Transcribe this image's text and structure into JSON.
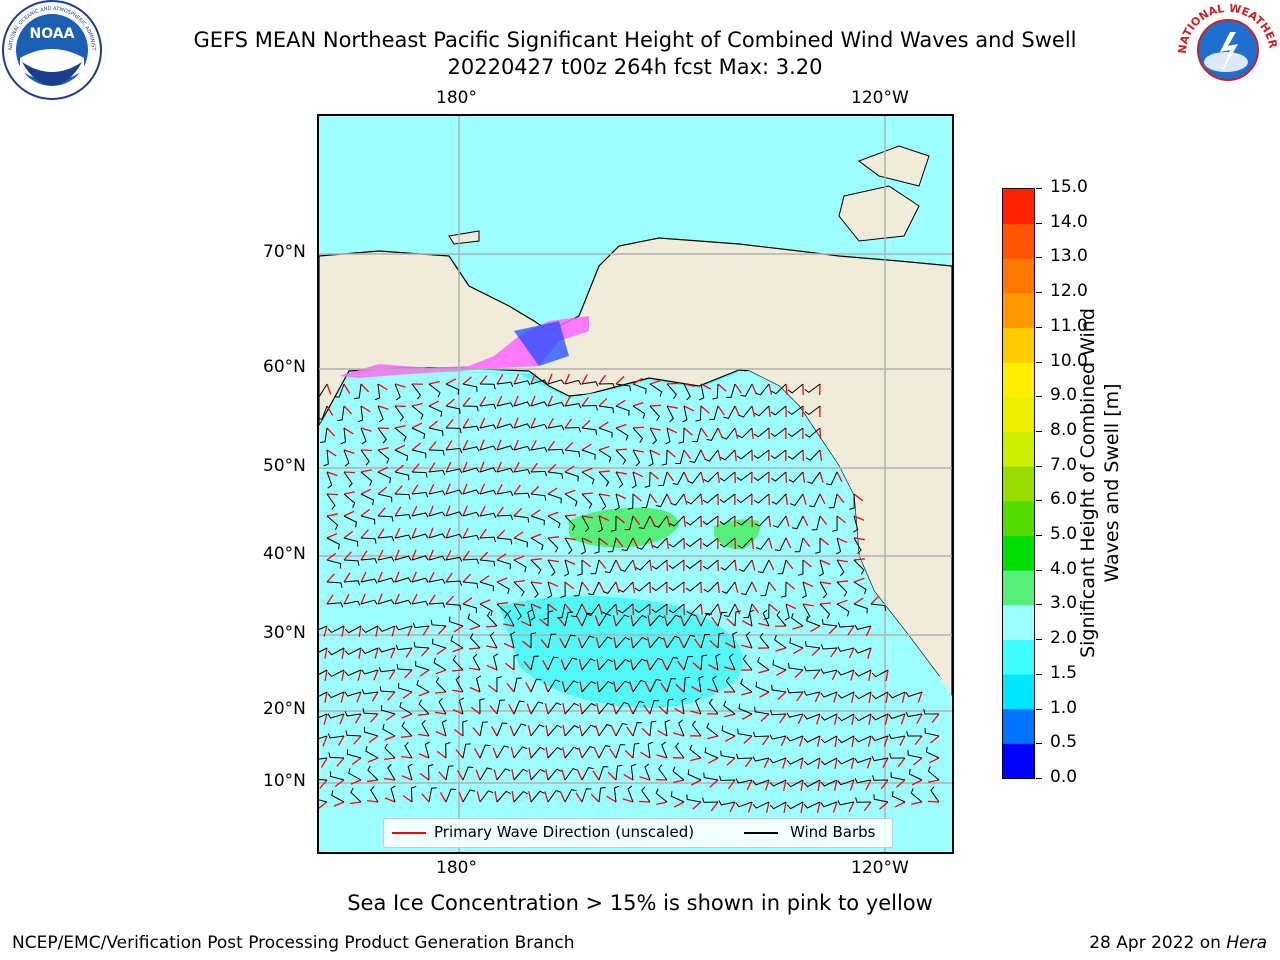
{
  "header": {
    "title_line1": "GEFS MEAN Northeast Pacific Significant Height of Combined Wind Waves and Swell",
    "title_line2": "20220427 t00z 264h fcst   Max: 3.20"
  },
  "logos": {
    "left": "NOAA",
    "left_ring_text": "NATIONAL OCEANIC AND ATMOSPHERIC ADMINISTRATION · U.S. DEPARTMENT OF COMMERCE",
    "right_ring_text": "NATIONAL WEATHER SERVICE"
  },
  "axes": {
    "lon_top": [
      "180°",
      "120°W"
    ],
    "lon_bottom": [
      "180°",
      "120°W"
    ],
    "lat_left": [
      "70°N",
      "60°N",
      "50°N",
      "40°N",
      "30°N",
      "20°N",
      "10°N"
    ]
  },
  "legend": {
    "wave_direction": "Primary Wave Direction (unscaled)",
    "wind_barbs": "Wind Barbs"
  },
  "colorbar": {
    "label": "Significant Height of Combined Wind Waves and Swell [m]",
    "ticks": [
      "0.0",
      "0.5",
      "1.0",
      "1.5",
      "2.0",
      "3.0",
      "4.0",
      "5.0",
      "6.0",
      "7.0",
      "8.0",
      "9.0",
      "10.0",
      "11.0",
      "12.0",
      "13.0",
      "14.0",
      "15.0"
    ],
    "colors": [
      "#0000ff",
      "#0073ff",
      "#00e6ff",
      "#40ffff",
      "#9effff",
      "#55f07a",
      "#00dd00",
      "#55dd00",
      "#99dd00",
      "#ccee00",
      "#eeee00",
      "#ffee00",
      "#ffcc00",
      "#ff9900",
      "#ff7700",
      "#ff5500",
      "#ff2200"
    ]
  },
  "colors": {
    "land": "#efecd9",
    "ocean_base": "#9effff",
    "ocean_mid": "#3ff7f7",
    "wave_high": "#55f07a",
    "ice_pink": "#ff66ff",
    "arrow": "#ff0000",
    "barb": "#000000"
  },
  "footer": {
    "note": "Sea Ice Concentration > 15% is shown in pink to yellow",
    "org": "NCEP/EMC/Verification Post Processing Product Generation Branch",
    "date": "28 Apr 2022 on ",
    "machine": "Hera"
  }
}
